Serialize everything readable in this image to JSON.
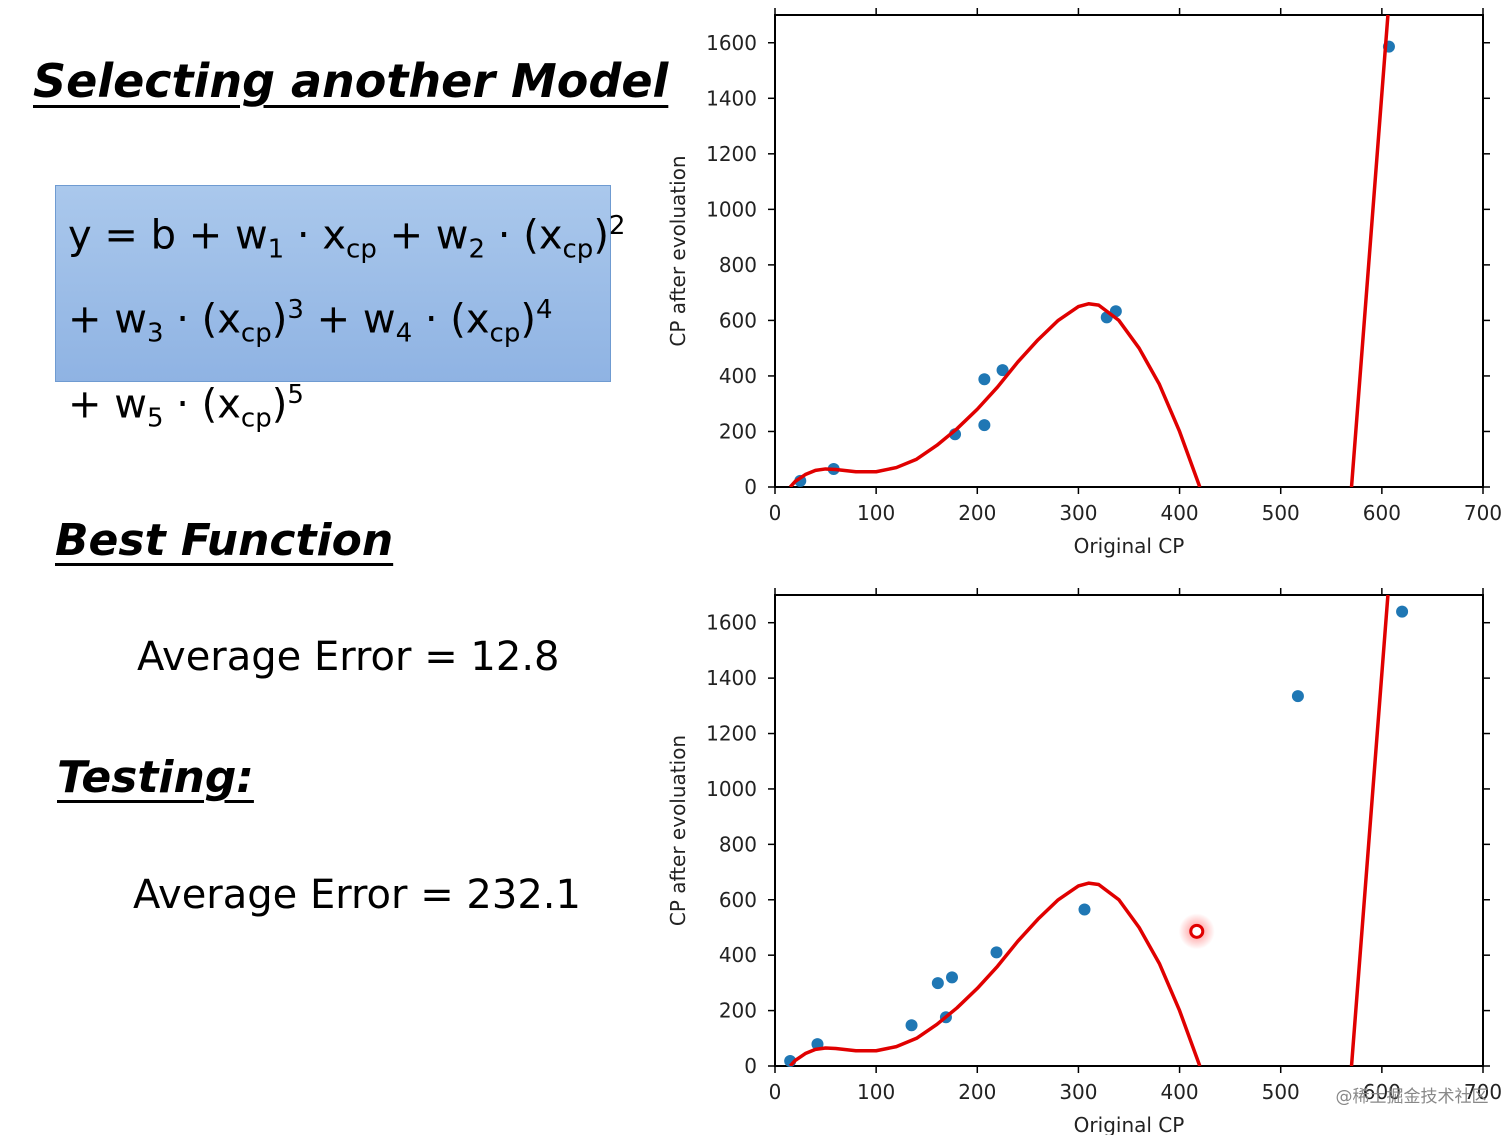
{
  "slide": {
    "title": "Selecting another Model",
    "formula": [
      [
        {
          "base": "y = b + w",
          "sub": "1"
        },
        {
          "base": " · x",
          "sub": "cp"
        },
        {
          "base": " + w",
          "sub": "2"
        },
        {
          "base": " · (x",
          "sub": "cp"
        },
        {
          "base": ")",
          "sup": "2"
        }
      ],
      [
        {
          "base": "+ w",
          "sub": "3"
        },
        {
          "base": " · (x",
          "sub": "cp"
        },
        {
          "base": ")",
          "sup": "3"
        },
        {
          "base": " + w",
          "sub": "4"
        },
        {
          "base": " · (x",
          "sub": "cp"
        },
        {
          "base": ")",
          "sup": "4"
        }
      ],
      [
        {
          "base": "+ w",
          "sub": "5"
        },
        {
          "base": " · (x",
          "sub": "cp"
        },
        {
          "base": ")",
          "sup": "5"
        }
      ]
    ],
    "best_heading": "Best Function",
    "best_error": "Average Error = 12.8",
    "testing_heading": "Testing:",
    "testing_error": "Average Error = 232.1",
    "watermark": "@稀土掘金技术社区"
  },
  "chart_data": [
    {
      "type": "scatter",
      "xlabel": "Original CP",
      "ylabel": "CP after evoluation",
      "xlim": [
        0,
        700
      ],
      "ylim": [
        0,
        1700
      ],
      "xticks": [
        0,
        100,
        200,
        300,
        400,
        500,
        600,
        700
      ],
      "yticks": [
        0,
        200,
        400,
        600,
        800,
        1000,
        1200,
        1400,
        1600
      ],
      "series": [
        {
          "type": "scatter",
          "color": "#1f77b4",
          "x": [
            25,
            58,
            178,
            207,
            207,
            225,
            328,
            337,
            607
          ],
          "values": [
            22,
            65,
            190,
            388,
            223,
            421,
            611,
            633,
            1586
          ]
        },
        {
          "type": "line",
          "color": "#e00000",
          "x": [
            15,
            20,
            30,
            40,
            50,
            60,
            80,
            100,
            120,
            140,
            160,
            180,
            200,
            220,
            240,
            260,
            280,
            300,
            310,
            320,
            340,
            360,
            380,
            400,
            420,
            500,
            570,
            606
          ],
          "values": [
            0,
            20,
            45,
            60,
            65,
            63,
            55,
            55,
            70,
            100,
            150,
            210,
            280,
            360,
            450,
            530,
            600,
            650,
            660,
            655,
            600,
            500,
            370,
            200,
            0,
            null,
            0,
            1700
          ]
        }
      ]
    },
    {
      "type": "scatter",
      "xlabel": "Original CP",
      "ylabel": "CP after evoluation",
      "xlim": [
        0,
        700
      ],
      "ylim": [
        0,
        1700
      ],
      "xticks": [
        0,
        100,
        200,
        300,
        400,
        500,
        600,
        700
      ],
      "yticks": [
        0,
        200,
        400,
        600,
        800,
        1000,
        1200,
        1400,
        1600
      ],
      "series": [
        {
          "type": "scatter",
          "color": "#1f77b4",
          "x": [
            15,
            42,
            135,
            161,
            169,
            175,
            219,
            306,
            517,
            620
          ],
          "values": [
            18,
            79,
            147,
            299,
            176,
            320,
            410,
            565,
            1335,
            1640
          ]
        },
        {
          "type": "line",
          "color": "#e00000",
          "x": [
            15,
            20,
            30,
            40,
            50,
            60,
            80,
            100,
            120,
            140,
            160,
            180,
            200,
            220,
            240,
            260,
            280,
            300,
            310,
            320,
            340,
            360,
            380,
            400,
            420,
            500,
            570,
            606
          ],
          "values": [
            0,
            20,
            45,
            60,
            65,
            63,
            55,
            55,
            70,
            100,
            150,
            210,
            280,
            360,
            450,
            530,
            600,
            650,
            660,
            655,
            600,
            500,
            370,
            200,
            0,
            null,
            0,
            1700
          ]
        },
        {
          "type": "highlight",
          "color": "#e00000",
          "x": [
            417
          ],
          "values": [
            486
          ]
        }
      ]
    }
  ]
}
